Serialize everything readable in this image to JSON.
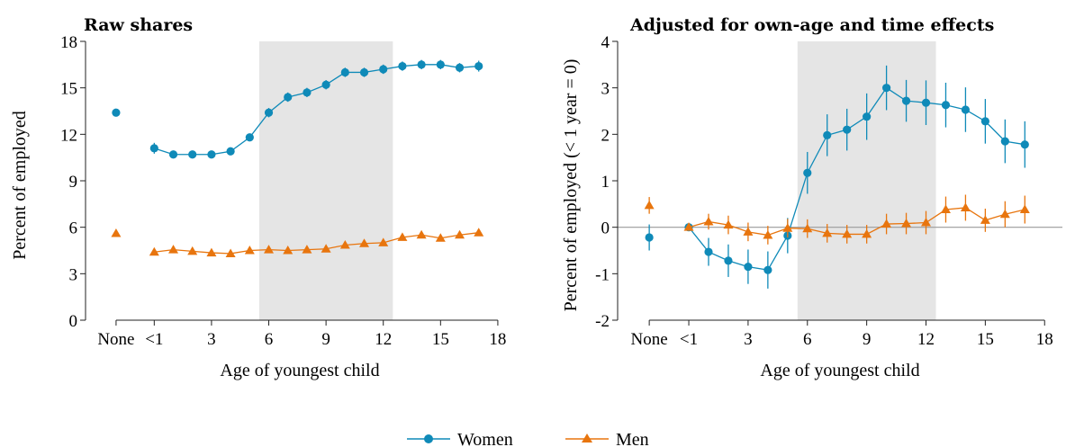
{
  "colors": {
    "women": "#0f8ab8",
    "men": "#e8750e",
    "shade": "#e5e5e5",
    "zero_line": "#9a9a9a"
  },
  "legend": {
    "items": [
      {
        "label": "Women",
        "marker": "circle"
      },
      {
        "label": "Men",
        "marker": "triangle"
      }
    ]
  },
  "chart_data": [
    {
      "type": "line",
      "title": "Raw shares",
      "xlabel": "Age of youngest child",
      "ylabel": "Percent of employed",
      "xlim": [
        -3.6,
        18.9
      ],
      "ylim": [
        0,
        18
      ],
      "yticks": [
        0,
        3,
        6,
        9,
        12,
        15,
        18
      ],
      "xticks": [
        {
          "v": -2,
          "label": "None"
        },
        {
          "v": 0,
          "label": "<1"
        },
        {
          "v": 3,
          "label": "3"
        },
        {
          "v": 6,
          "label": "6"
        },
        {
          "v": 9,
          "label": "9"
        },
        {
          "v": 12,
          "label": "12"
        },
        {
          "v": 15,
          "label": "15"
        },
        {
          "v": 18,
          "label": "18"
        }
      ],
      "shaded_region": [
        5.5,
        12.5
      ],
      "zero_line": false,
      "none_points": {
        "women": 13.4,
        "men": 5.6
      },
      "series": [
        {
          "name": "Women",
          "marker": "circle",
          "x": [
            0,
            1,
            2,
            3,
            4,
            5,
            6,
            7,
            8,
            9,
            10,
            11,
            12,
            13,
            14,
            15,
            16,
            17
          ],
          "values": [
            11.1,
            10.7,
            10.7,
            10.7,
            10.9,
            11.8,
            13.4,
            14.4,
            14.7,
            15.2,
            16.0,
            16.0,
            16.2,
            16.4,
            16.5,
            16.5,
            16.3,
            16.4
          ],
          "ci": [
            0.35,
            0.2,
            0.2,
            0.2,
            0.2,
            0.2,
            0.3,
            0.3,
            0.3,
            0.3,
            0.3,
            0.3,
            0.3,
            0.3,
            0.3,
            0.3,
            0.3,
            0.35
          ]
        },
        {
          "name": "Men",
          "marker": "triangle",
          "x": [
            0,
            1,
            2,
            3,
            4,
            5,
            6,
            7,
            8,
            9,
            10,
            11,
            12,
            13,
            14,
            15,
            16,
            17
          ],
          "values": [
            4.4,
            4.55,
            4.45,
            4.35,
            4.3,
            4.5,
            4.55,
            4.5,
            4.55,
            4.6,
            4.85,
            4.95,
            5.0,
            5.35,
            5.5,
            5.3,
            5.5,
            5.65
          ],
          "ci": [
            0.15,
            0.15,
            0.15,
            0.15,
            0.15,
            0.15,
            0.15,
            0.15,
            0.15,
            0.15,
            0.15,
            0.15,
            0.15,
            0.15,
            0.15,
            0.15,
            0.15,
            0.15
          ]
        }
      ]
    },
    {
      "type": "line",
      "title": "Adjusted for own-age and time effects",
      "xlabel": "Age of youngest child",
      "ylabel": "Percent of employed (< 1 year = 0)",
      "xlim": [
        -3.6,
        18.9
      ],
      "ylim": [
        -2,
        4
      ],
      "yticks": [
        -2,
        -1,
        0,
        1,
        2,
        3,
        4
      ],
      "xticks": [
        {
          "v": -2,
          "label": "None"
        },
        {
          "v": 0,
          "label": "<1"
        },
        {
          "v": 3,
          "label": "3"
        },
        {
          "v": 6,
          "label": "6"
        },
        {
          "v": 9,
          "label": "9"
        },
        {
          "v": 12,
          "label": "12"
        },
        {
          "v": 15,
          "label": "15"
        },
        {
          "v": 18,
          "label": "18"
        }
      ],
      "shaded_region": [
        5.5,
        12.5
      ],
      "zero_line": true,
      "none_points": {
        "women": -0.22,
        "men": 0.47
      },
      "none_ci": {
        "women": 0.28,
        "men": 0.18
      },
      "series": [
        {
          "name": "Women",
          "marker": "circle",
          "x": [
            0,
            1,
            2,
            3,
            4,
            5,
            6,
            7,
            8,
            9,
            10,
            11,
            12,
            13,
            14,
            15,
            16,
            17
          ],
          "values": [
            0.0,
            -0.53,
            -0.72,
            -0.85,
            -0.92,
            -0.18,
            1.17,
            1.98,
            2.1,
            2.38,
            3.0,
            2.72,
            2.68,
            2.63,
            2.53,
            2.28,
            1.85,
            1.78
          ],
          "ci": [
            0.0,
            0.3,
            0.35,
            0.37,
            0.4,
            0.38,
            0.45,
            0.45,
            0.45,
            0.5,
            0.48,
            0.45,
            0.48,
            0.48,
            0.48,
            0.48,
            0.47,
            0.5
          ]
        },
        {
          "name": "Men",
          "marker": "triangle",
          "x": [
            0,
            1,
            2,
            3,
            4,
            5,
            6,
            7,
            8,
            9,
            10,
            11,
            12,
            13,
            14,
            15,
            16,
            17
          ],
          "values": [
            0.0,
            0.12,
            0.05,
            -0.1,
            -0.17,
            -0.02,
            -0.03,
            -0.13,
            -0.15,
            -0.15,
            0.07,
            0.08,
            0.1,
            0.38,
            0.42,
            0.15,
            0.28,
            0.38
          ],
          "ci": [
            0.0,
            0.17,
            0.2,
            0.2,
            0.2,
            0.2,
            0.2,
            0.2,
            0.2,
            0.2,
            0.22,
            0.23,
            0.25,
            0.28,
            0.28,
            0.25,
            0.28,
            0.3
          ]
        }
      ]
    }
  ]
}
